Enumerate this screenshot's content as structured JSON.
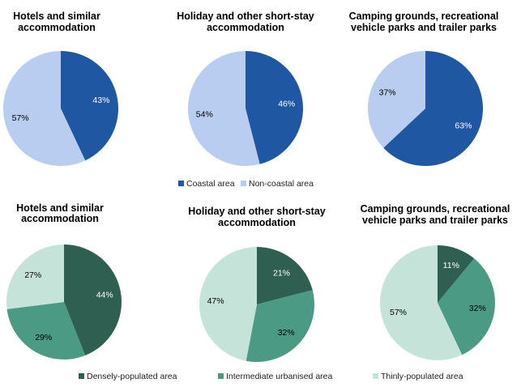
{
  "chart_data": [
    {
      "type": "pie",
      "title": [
        "Hotels and similar",
        "accommodation"
      ],
      "categories": [
        "Coastal area",
        "Non-coastal area"
      ],
      "values": [
        43,
        57
      ],
      "labels": [
        "43%",
        "57%"
      ],
      "colors": [
        "#1f57a3",
        "#b8cdef"
      ],
      "label_colors": [
        "#ffffff",
        "#000000"
      ]
    },
    {
      "type": "pie",
      "title": [
        "Holiday and other short-stay",
        "accommodation"
      ],
      "categories": [
        "Coastal area",
        "Non-coastal area"
      ],
      "values": [
        46,
        54
      ],
      "labels": [
        "46%",
        "54%"
      ],
      "colors": [
        "#1f57a3",
        "#b8cdef"
      ],
      "label_colors": [
        "#ffffff",
        "#000000"
      ]
    },
    {
      "type": "pie",
      "title": [
        "Camping grounds, recreational",
        "vehicle parks and trailer parks"
      ],
      "categories": [
        "Coastal area",
        "Non-coastal area"
      ],
      "values": [
        63,
        37
      ],
      "labels": [
        "63%",
        "37%"
      ],
      "colors": [
        "#1f57a3",
        "#b8cdef"
      ],
      "label_colors": [
        "#ffffff",
        "#000000"
      ]
    },
    {
      "type": "pie",
      "title": [
        "Hotels and similar",
        "accommodation"
      ],
      "categories": [
        "Densely-populated area",
        "Intermediate urbanised area",
        "Thinly-populated area"
      ],
      "values": [
        44,
        29,
        27
      ],
      "labels": [
        "44%",
        "29%",
        "27%"
      ],
      "colors": [
        "#2f5f50",
        "#4a9a84",
        "#c6e3da"
      ],
      "label_colors": [
        "#ffffff",
        "#000000",
        "#000000"
      ]
    },
    {
      "type": "pie",
      "title": [
        "Holiday and other short-stay",
        "accommodation"
      ],
      "categories": [
        "Densely-populated area",
        "Intermediate urbanised area",
        "Thinly-populated area"
      ],
      "values": [
        21,
        32,
        47
      ],
      "labels": [
        "21%",
        "32%",
        "47%"
      ],
      "colors": [
        "#2f5f50",
        "#4a9a84",
        "#c6e3da"
      ],
      "label_colors": [
        "#ffffff",
        "#000000",
        "#000000"
      ]
    },
    {
      "type": "pie",
      "title": [
        "Camping grounds, recreational",
        "vehicle parks and trailer parks"
      ],
      "categories": [
        "Densely-populated area",
        "Intermediate urbanised area",
        "Thinly-populated area"
      ],
      "values": [
        11,
        32,
        57
      ],
      "labels": [
        "11%",
        "32%",
        "57%"
      ],
      "colors": [
        "#2f5f50",
        "#4a9a84",
        "#c6e3da"
      ],
      "label_colors": [
        "#ffffff",
        "#000000",
        "#000000"
      ]
    }
  ],
  "legends": [
    {
      "items": [
        {
          "label": "Coastal area",
          "color": "#1f57a3"
        },
        {
          "label": "Non-coastal area",
          "color": "#b8cdef"
        }
      ]
    },
    {
      "items": [
        {
          "label": "Densely-populated area",
          "color": "#2f5f50"
        },
        {
          "label": "Intermediate urbanised area",
          "color": "#4a9a84"
        },
        {
          "label": "Thinly-populated area",
          "color": "#c6e3da"
        }
      ]
    }
  ]
}
